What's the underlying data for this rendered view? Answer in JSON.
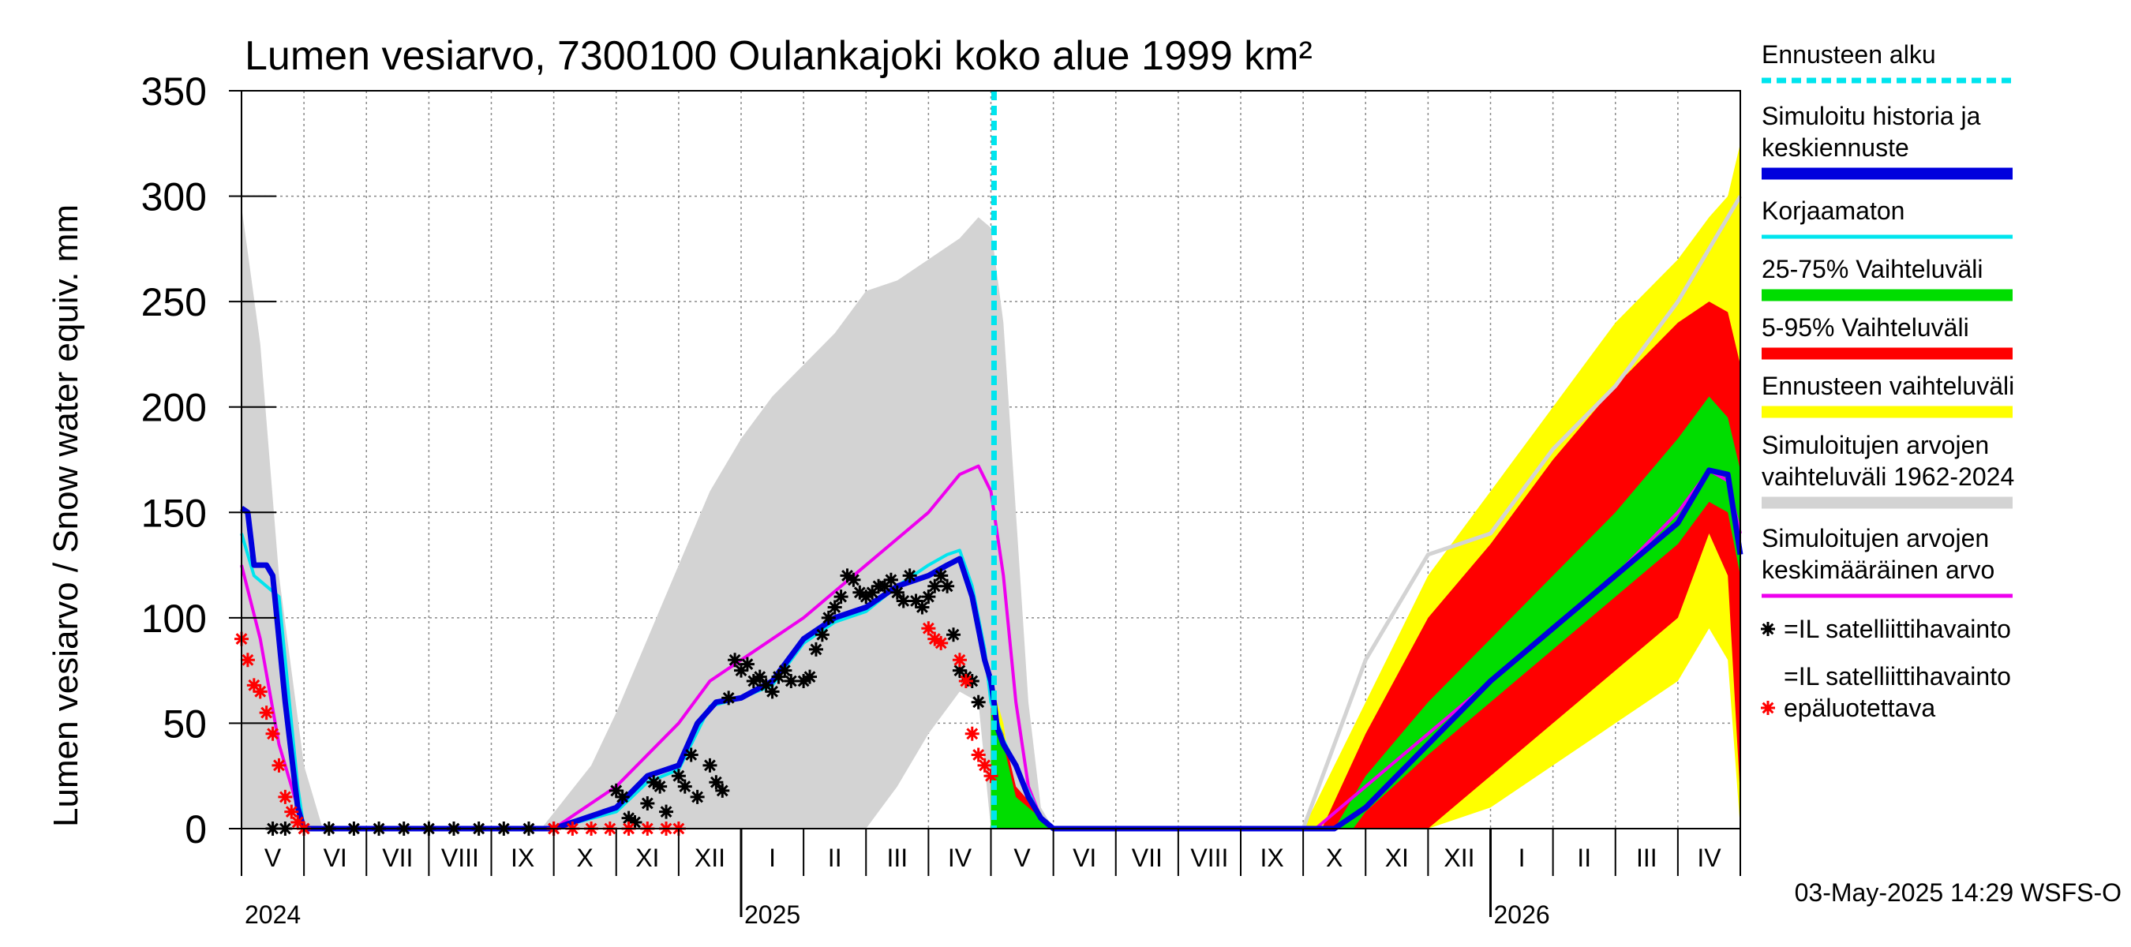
{
  "chart_data": {
    "type": "area",
    "title": "Lumen vesiarvo, 7300100 Oulankajoki koko alue 1999 km²",
    "ylabel": "Lumen vesiarvo / Snow water equiv.    mm",
    "ylim": [
      0,
      350
    ],
    "yticks": [
      0,
      50,
      100,
      150,
      200,
      250,
      300,
      350
    ],
    "x_months": [
      "V",
      "VI",
      "VII",
      "VIII",
      "IX",
      "X",
      "XI",
      "XII",
      "I",
      "II",
      "III",
      "IV",
      "V",
      "VI",
      "VII",
      "VIII",
      "IX",
      "X",
      "XI",
      "XII",
      "I",
      "II",
      "III",
      "IV"
    ],
    "years": [
      "2024",
      "2025",
      "2026"
    ],
    "forecast_start_month_index": 12.05,
    "timestamp": "03-May-2025 14:29 WSFS-O",
    "legend": [
      {
        "label": "Ennusteen alku",
        "color": "#00e5ee",
        "style": "dashed"
      },
      {
        "label": "Simuloitu historia ja keskiennuste",
        "color": "#0000dd",
        "style": "thick"
      },
      {
        "label": "Korjaamaton",
        "color": "#00e5ee",
        "style": "line"
      },
      {
        "label": "25-75% Vaihteluväli",
        "color": "#00dd00",
        "style": "band"
      },
      {
        "label": "5-95% Vaihteluväli",
        "color": "#ff0000",
        "style": "band"
      },
      {
        "label": "Ennusteen vaihteluväli",
        "color": "#ffff00",
        "style": "band"
      },
      {
        "label": "Simuloitujen arvojen vaihteluväli 1962-2024",
        "color": "#d3d3d3",
        "style": "band"
      },
      {
        "label": "Simuloitujen arvojen keskimääräinen arvo",
        "color": "#ee00ee",
        "style": "line"
      },
      {
        "label": "=IL satelliittihavainto",
        "color": "#000000",
        "style": "star"
      },
      {
        "label": "=IL satelliittihavainto epäluotettava",
        "color": "#ff0000",
        "style": "star"
      }
    ],
    "series": [
      {
        "name": "Simuloitujen arvojen vaihteluväli 1962-2024 (max)",
        "months": [
          0,
          0.3,
          0.6,
          1.0,
          1.3,
          1.6,
          4.8,
          5.2,
          5.6,
          6.0,
          6.5,
          7.0,
          7.5,
          8.0,
          8.5,
          9.0,
          9.5,
          10.0,
          10.5,
          11.0,
          11.5,
          11.8,
          12.0,
          12.2,
          12.4,
          12.6,
          12.8,
          13.0
        ],
        "values": [
          295,
          230,
          120,
          30,
          0,
          0,
          0,
          15,
          30,
          55,
          90,
          125,
          160,
          185,
          205,
          220,
          235,
          255,
          260,
          270,
          280,
          290,
          285,
          240,
          150,
          60,
          10,
          0
        ]
      },
      {
        "name": "Simuloitujen arvojen vaihteluväli 1962-2024 (min)",
        "months": [
          0,
          0.5,
          1.0,
          10.0,
          10.5,
          11.0,
          11.5,
          11.8,
          12.0,
          13.0
        ],
        "values": [
          0,
          0,
          0,
          0,
          20,
          45,
          65,
          60,
          0,
          0
        ]
      },
      {
        "name": "Simuloitujen arvojen keskimääräinen arvo",
        "months": [
          0,
          0.3,
          0.6,
          1.0,
          5.0,
          6.0,
          7.0,
          7.5,
          8.0,
          9.0,
          10.0,
          11.0,
          11.5,
          11.8,
          12.0,
          12.2,
          12.4,
          12.6,
          12.8,
          13.0,
          17.2,
          18.0,
          19.0,
          20.0,
          21.0,
          22.0,
          23.0,
          23.5,
          23.8,
          24.0
        ],
        "values": [
          125,
          90,
          40,
          0,
          0,
          20,
          50,
          70,
          80,
          100,
          125,
          150,
          168,
          172,
          160,
          120,
          60,
          20,
          5,
          0,
          0,
          20,
          45,
          70,
          95,
          120,
          150,
          170,
          165,
          140
        ]
      },
      {
        "name": "Simuloitu historia ja keskiennuste",
        "months": [
          0,
          0.1,
          0.2,
          0.4,
          0.5,
          0.7,
          0.9,
          1.0,
          5.0,
          6.0,
          6.5,
          7.0,
          7.3,
          7.6,
          8.0,
          8.5,
          9.0,
          9.5,
          10.0,
          10.5,
          11.0,
          11.3,
          11.5,
          11.7,
          11.9,
          12.0,
          12.05,
          12.1,
          12.2,
          12.4,
          12.6,
          12.8,
          13.0,
          17.5,
          18.0,
          19.0,
          20.0,
          21.0,
          22.0,
          23.0,
          23.5,
          23.8,
          24.0
        ],
        "values": [
          152,
          150,
          125,
          125,
          120,
          60,
          10,
          0,
          0,
          10,
          25,
          30,
          50,
          60,
          62,
          70,
          90,
          100,
          105,
          115,
          120,
          125,
          128,
          110,
          80,
          70,
          60,
          48,
          40,
          30,
          15,
          5,
          0,
          0,
          10,
          40,
          70,
          95,
          120,
          145,
          170,
          168,
          130
        ]
      },
      {
        "name": "Korjaamaton",
        "months": [
          0,
          0.2,
          0.4,
          0.6,
          0.9,
          1.0,
          5.0,
          6.0,
          6.5,
          7.0,
          7.5,
          8.0,
          8.5,
          9.0,
          9.5,
          10.0,
          10.5,
          11.0,
          11.3,
          11.5,
          11.7,
          11.9,
          12.0,
          12.2,
          12.4,
          12.8,
          13.0
        ],
        "values": [
          140,
          120,
          115,
          110,
          20,
          0,
          0,
          8,
          22,
          28,
          58,
          62,
          68,
          88,
          98,
          103,
          115,
          125,
          130,
          132,
          115,
          85,
          60,
          42,
          30,
          5,
          0
        ]
      },
      {
        "name": "Ennusteen vaihteluväli (max)",
        "months": [
          12.0,
          12.1,
          12.2,
          12.3,
          12.5,
          13.0,
          17.0,
          18.0,
          19.0,
          20.0,
          21.0,
          22.0,
          23.0,
          23.5,
          23.8,
          24.0
        ],
        "values": [
          65,
          60,
          50,
          30,
          10,
          0,
          0,
          60,
          120,
          160,
          200,
          240,
          270,
          290,
          300,
          325
        ]
      },
      {
        "name": "Ennusteen vaihteluväli (min)",
        "months": [
          12.0,
          13.0,
          18.0,
          19.0,
          20.0,
          21.0,
          22.0,
          23.0,
          23.5,
          23.8,
          24.0
        ],
        "values": [
          0,
          0,
          0,
          0,
          10,
          30,
          50,
          70,
          95,
          80,
          0
        ]
      },
      {
        "name": "5-95% Vaihteluväli (max)",
        "months": [
          12.0,
          12.2,
          12.4,
          13.0,
          17.3,
          18.0,
          19.0,
          20.0,
          21.0,
          22.0,
          23.0,
          23.5,
          23.8,
          24.0
        ],
        "values": [
          60,
          45,
          20,
          0,
          0,
          45,
          100,
          135,
          175,
          210,
          240,
          250,
          245,
          220
        ]
      },
      {
        "name": "5-95% Vaihteluväli (min)",
        "months": [
          12.0,
          13.0,
          18.0,
          19.0,
          20.0,
          21.0,
          22.0,
          23.0,
          23.5,
          23.8,
          24.0
        ],
        "values": [
          0,
          0,
          0,
          0,
          25,
          50,
          75,
          100,
          140,
          120,
          15
        ]
      },
      {
        "name": "25-75% Vaihteluväli (max)",
        "months": [
          12.0,
          12.2,
          12.4,
          13.0,
          17.5,
          18.0,
          19.0,
          20.0,
          21.0,
          22.0,
          23.0,
          23.5,
          23.8,
          24.0
        ],
        "values": [
          55,
          40,
          15,
          0,
          0,
          25,
          60,
          90,
          120,
          150,
          185,
          205,
          195,
          170
        ]
      },
      {
        "name": "25-75% Vaihteluväli (min)",
        "months": [
          12.0,
          13.0,
          17.8,
          18.0,
          19.0,
          20.0,
          21.0,
          22.0,
          23.0,
          23.5,
          23.8,
          24.0
        ],
        "values": [
          0,
          0,
          0,
          8,
          35,
          60,
          85,
          110,
          135,
          155,
          150,
          120
        ]
      },
      {
        "name": "Vertailuvuosi (harmaa)",
        "months": [
          17.0,
          18.0,
          19.0,
          20.0,
          21.0,
          22.0,
          23.0,
          23.5,
          23.8,
          24.0
        ],
        "values": [
          0,
          80,
          130,
          140,
          180,
          210,
          250,
          275,
          290,
          300
        ]
      }
    ],
    "observations": {
      "black": {
        "months": [
          0.5,
          0.7,
          1.0,
          1.4,
          1.8,
          2.2,
          2.6,
          3.0,
          3.4,
          3.8,
          4.2,
          4.6,
          5.0,
          6.0,
          6.1,
          6.2,
          6.3,
          6.5,
          6.6,
          6.7,
          6.8,
          7.0,
          7.1,
          7.2,
          7.3,
          7.5,
          7.6,
          7.7,
          7.8,
          7.9,
          8.0,
          8.1,
          8.2,
          8.3,
          8.4,
          8.5,
          8.6,
          8.7,
          8.8,
          9.0,
          9.1,
          9.2,
          9.3,
          9.4,
          9.5,
          9.6,
          9.7,
          9.8,
          9.9,
          10.0,
          10.1,
          10.2,
          10.3,
          10.4,
          10.5,
          10.6,
          10.7,
          10.8,
          10.9,
          11.0,
          11.1,
          11.2,
          11.3,
          11.4,
          11.5,
          11.6,
          11.7,
          11.8
        ],
        "values": [
          0,
          0,
          0,
          0,
          0,
          0,
          0,
          0,
          0,
          0,
          0,
          0,
          0,
          18,
          15,
          5,
          3,
          12,
          22,
          20,
          8,
          25,
          20,
          35,
          15,
          30,
          22,
          18,
          62,
          80,
          75,
          78,
          70,
          72,
          68,
          65,
          72,
          75,
          70,
          70,
          72,
          85,
          92,
          100,
          105,
          110,
          120,
          118,
          112,
          110,
          112,
          115,
          115,
          118,
          112,
          108,
          120,
          108,
          105,
          110,
          115,
          120,
          115,
          92,
          75,
          72,
          70,
          60
        ]
      },
      "red": {
        "months": [
          0.0,
          0.1,
          0.2,
          0.3,
          0.4,
          0.5,
          0.6,
          0.7,
          0.8,
          0.9,
          1.0,
          5.0,
          5.3,
          5.6,
          5.9,
          6.2,
          6.5,
          6.8,
          7.0,
          11.0,
          11.1,
          11.2,
          11.5,
          11.6,
          11.7,
          11.8,
          11.9,
          12.0
        ],
        "values": [
          90,
          80,
          68,
          65,
          55,
          45,
          30,
          15,
          8,
          3,
          0,
          0,
          0,
          0,
          0,
          0,
          0,
          0,
          0,
          95,
          90,
          88,
          80,
          70,
          45,
          35,
          30,
          25
        ]
      }
    }
  }
}
